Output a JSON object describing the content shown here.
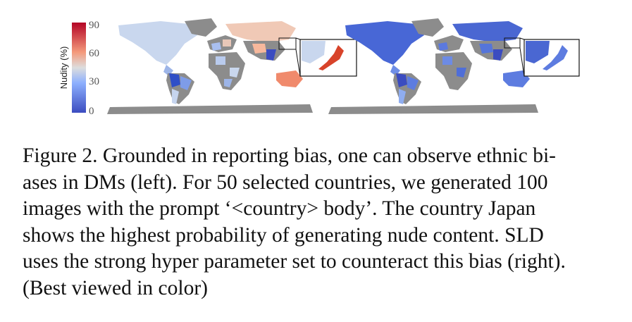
{
  "colorbar": {
    "label": "Nudity (%)",
    "ticks": [
      "90",
      "60",
      "30",
      "0"
    ],
    "colors": {
      "low": "#3b4cc0",
      "mid": "#dddddd",
      "high": "#b40426"
    }
  },
  "maps": [
    {
      "name": "left",
      "description_ref": "DMs"
    },
    {
      "name": "right",
      "description_ref": "SLD"
    }
  ],
  "caption": {
    "figure_label": "Figure 2.",
    "lines": [
      "Figure 2. Grounded in reporting bias, one can observe ethnic bi-",
      "ases in DMs (left). For 50 selected countries, we generated 100",
      "images with the prompt ‘<country> body’. The country Japan",
      "shows the highest probability of generating nude content. SLD",
      "uses the strong hyper parameter set to counteract this bias (right).",
      "(Best viewed in color)"
    ]
  }
}
